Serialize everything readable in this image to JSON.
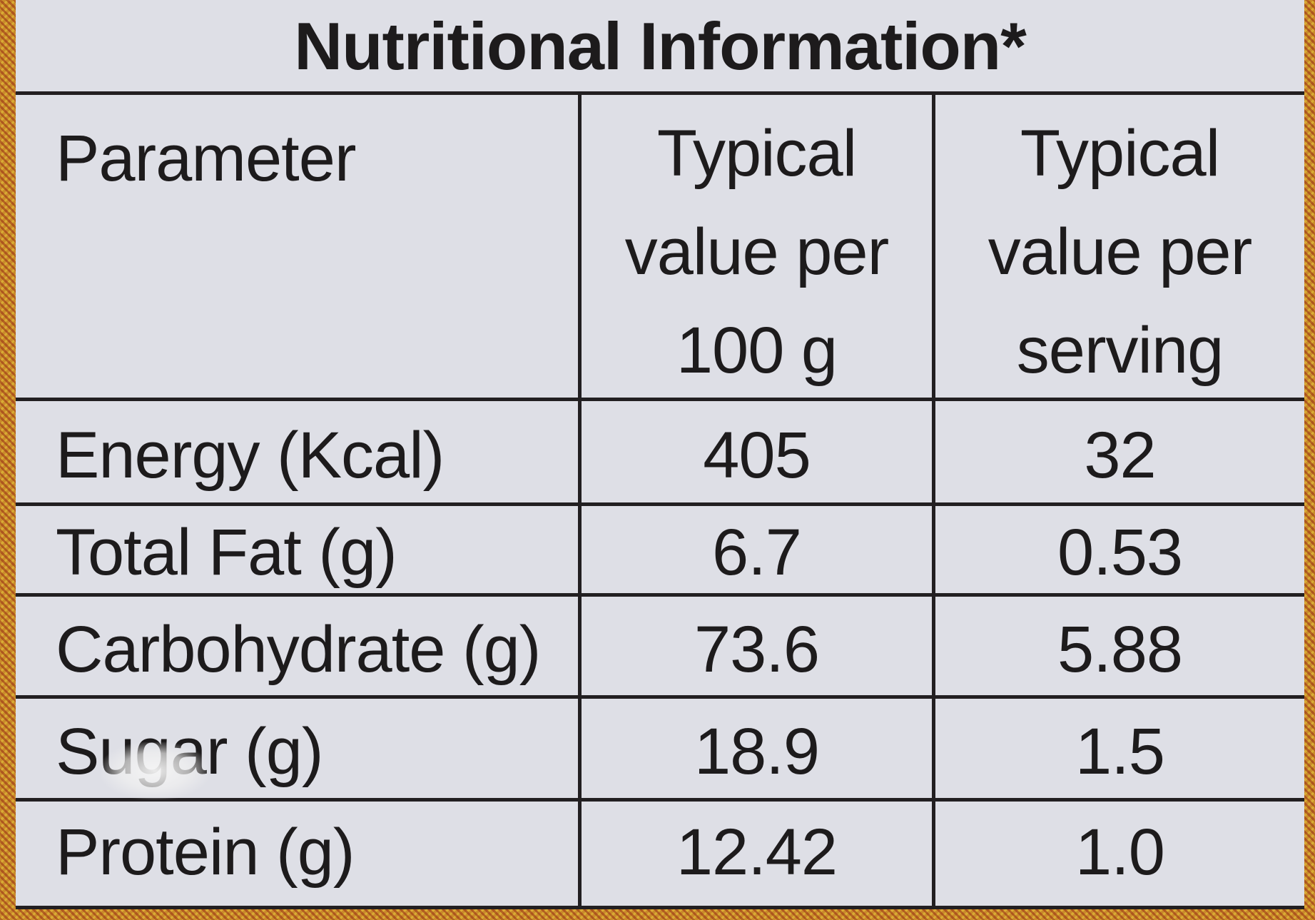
{
  "title": "Nutritional Information*",
  "header": {
    "parameter": "Parameter",
    "col1": [
      "Typical",
      "value per",
      "100 g"
    ],
    "col2": [
      "Typical",
      "value per",
      "serving"
    ]
  },
  "rows": [
    {
      "parameter": "Energy (Kcal)",
      "per_100g": "405",
      "per_serving": "32"
    },
    {
      "parameter": "Total Fat (g)",
      "per_100g": "6.7",
      "per_serving": "0.53"
    },
    {
      "parameter": "Carbohydrate (g)",
      "per_100g": "73.6",
      "per_serving": "5.88"
    },
    {
      "parameter": "Sugar (g)",
      "per_100g": "18.9",
      "per_serving": "1.5"
    },
    {
      "parameter": "Protein (g)",
      "per_100g": "12.42",
      "per_serving": "1.0"
    }
  ],
  "colors": {
    "panel": "#dedfe6",
    "ink": "#1d1b1c",
    "border_pattern": "#c98a2a"
  }
}
